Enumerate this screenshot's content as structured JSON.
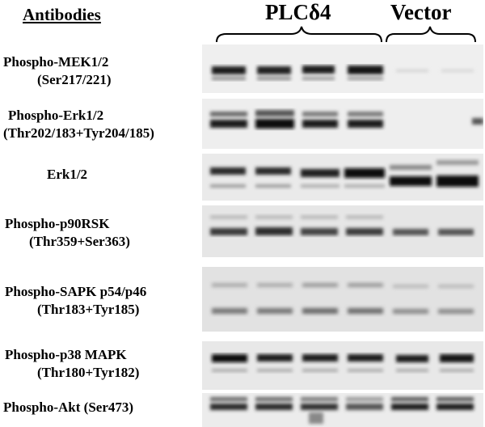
{
  "header": {
    "antibodies": "Antibodies",
    "group_plc": "PLCδ4",
    "group_vector": "Vector"
  },
  "rows": [
    {
      "line1": "Phospho-MEK1/2",
      "line2": "(Ser217/221)"
    },
    {
      "line1": "Phospho-Erk1/2",
      "line2": "(Thr202/183+Tyr204/185)"
    },
    {
      "line1": "Erk1/2",
      "line2": ""
    },
    {
      "line1": "Phospho-p90RSK",
      "line2": "(Thr359+Ser363)"
    },
    {
      "line1": "Phospho-SAPK p54/p46",
      "line2": "(Thr183+Tyr185)"
    },
    {
      "line1": "Phospho-p38 MAPK",
      "line2": "(Thr180+Tyr182)"
    },
    {
      "line1": "Phospho-Akt (Ser473)",
      "line2": ""
    }
  ]
}
